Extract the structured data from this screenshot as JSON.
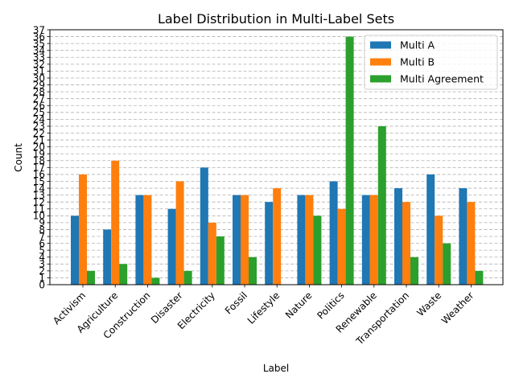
{
  "chart_data": {
    "type": "bar",
    "title": "Label Distribution in Multi-Label Sets",
    "xlabel": "Label",
    "ylabel": "Count",
    "categories": [
      "Activism",
      "Agriculture",
      "Construction",
      "Disaster",
      "Electricity",
      "Fossil",
      "Lifestyle",
      "Nature",
      "Politics",
      "Renewable",
      "Transportation",
      "Waste",
      "Weather"
    ],
    "series": [
      {
        "name": "Multi A",
        "color": "#1f77b4",
        "values": [
          10,
          8,
          13,
          11,
          17,
          13,
          12,
          13,
          15,
          13,
          14,
          16,
          14
        ]
      },
      {
        "name": "Multi B",
        "color": "#ff7f0e",
        "values": [
          16,
          18,
          13,
          15,
          9,
          13,
          14,
          13,
          11,
          13,
          12,
          10,
          12
        ]
      },
      {
        "name": "Multi Agreement",
        "color": "#2ca02c",
        "values": [
          2,
          3,
          1,
          2,
          7,
          4,
          0,
          10,
          36,
          23,
          4,
          6,
          2
        ]
      }
    ],
    "ylim": [
      0,
      37
    ],
    "yticks": [
      0,
      1,
      2,
      3,
      4,
      5,
      6,
      7,
      8,
      9,
      10,
      11,
      12,
      13,
      14,
      15,
      16,
      17,
      18,
      19,
      20,
      21,
      22,
      23,
      24,
      25,
      26,
      27,
      28,
      29,
      30,
      31,
      32,
      33,
      34,
      35,
      36,
      37
    ],
    "grid": "y-dashed",
    "legend_position": "top-right"
  }
}
